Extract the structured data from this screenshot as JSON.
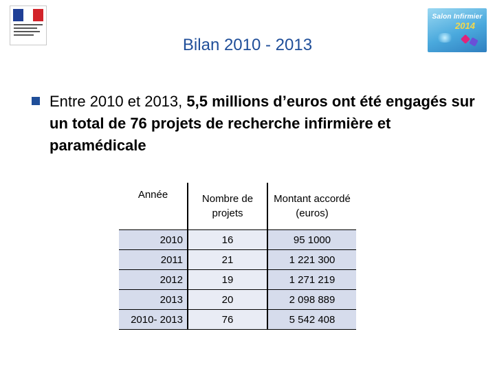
{
  "slide": {
    "title": "Bilan 2010 - 2013",
    "bullet": {
      "intro": "Entre 2010 et 2013, ",
      "emphasis": "5,5 millions d’euros ont été engagés sur un total de 76 projets de recherche infirmière et paramédicale"
    }
  },
  "logos": {
    "ministry": {
      "icon": "marianne-logo-icon"
    },
    "salon": {
      "line1": "Salon Infirmier",
      "line2": "2014",
      "icon": "salon-infirmier-logo-icon"
    }
  },
  "table": {
    "headers": [
      "Année",
      "Nombre de projets",
      "Montant accordé (euros)"
    ],
    "rows": [
      [
        "2010",
        "16",
        "95 1000"
      ],
      [
        "2011",
        "21",
        "1 221 300"
      ],
      [
        "2012",
        "19",
        "1 271 219"
      ],
      [
        "2013",
        "20",
        "2 098 889"
      ],
      [
        "2010- 2013",
        "76",
        "5 542 408"
      ]
    ]
  },
  "colors": {
    "title": "#1f4e99",
    "bullet": "#1f4e99",
    "cell_dark": "#d6dcec",
    "cell_light": "#e9ecf5"
  }
}
